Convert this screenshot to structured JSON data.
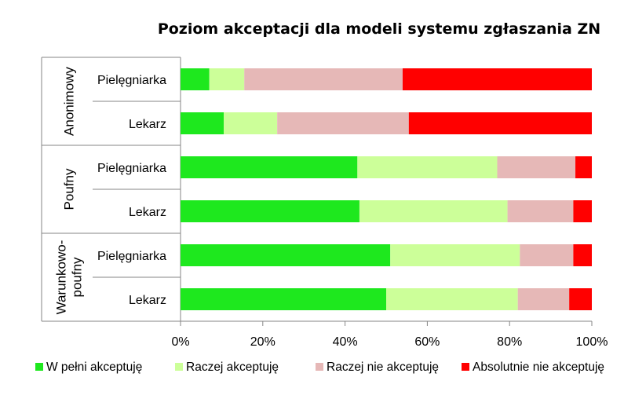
{
  "chart_data": {
    "type": "bar",
    "stacked": true,
    "percent_stacked": true,
    "orientation": "horizontal",
    "title": "Poziom akceptacji dla modeli systemu zgłaszania ZN",
    "groups": [
      {
        "label": "Anonimowy",
        "label_lines": [
          "Anonimowy"
        ],
        "categories": [
          "Pielęgniarka",
          "Lekarz"
        ]
      },
      {
        "label": "Poufny",
        "label_lines": [
          "Poufny"
        ],
        "categories": [
          "Pielęgniarka",
          "Lekarz"
        ]
      },
      {
        "label": "Warunkowo-poufny",
        "label_lines": [
          "Warunkowo-",
          "poufny"
        ],
        "categories": [
          "Pielęgniarka",
          "Lekarz"
        ]
      }
    ],
    "series": [
      {
        "name": "W pełni akceptuję",
        "color": "#1ee81e",
        "values": [
          7,
          10.5,
          43,
          43.5,
          51,
          50
        ]
      },
      {
        "name": "Raczej akceptuję",
        "color": "#ccff99",
        "values": [
          8.5,
          13,
          34,
          36,
          31.5,
          32
        ]
      },
      {
        "name": "Raczej nie akceptuję",
        "color": "#e6b8b7",
        "values": [
          38.5,
          32,
          19,
          16,
          13,
          12.5
        ]
      },
      {
        "name": "Absolutnie nie akceptuję",
        "color": "#ff0000",
        "values": [
          46,
          44.5,
          4,
          4.5,
          4.5,
          5.5
        ]
      }
    ],
    "xlim": [
      0,
      100
    ],
    "xticks": [
      "0%",
      "20%",
      "40%",
      "60%",
      "80%",
      "100%"
    ],
    "legend_position": "bottom",
    "grid": false
  }
}
